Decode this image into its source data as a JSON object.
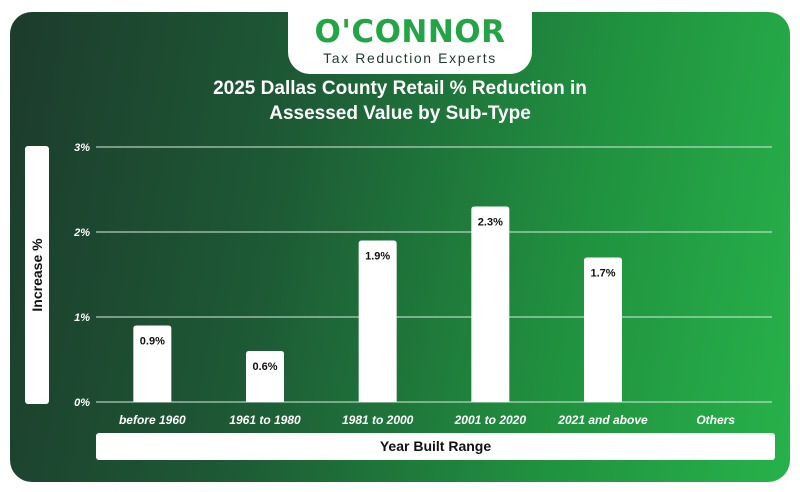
{
  "brand": {
    "wordmark": "O'CONNOR",
    "tagline": "Tax Reduction Experts"
  },
  "chart_data": {
    "type": "bar",
    "title": "2025 Dallas County Retail % Reduction in Assessed Value by Sub-Type",
    "title_lines": [
      "2025 Dallas County Retail % Reduction in",
      "Assessed Value by Sub-Type"
    ],
    "xlabel": "Year Built Range",
    "ylabel": "Increase %",
    "categories": [
      "before 1960",
      "1961 to 1980",
      "1981 to 2000",
      "2001 to 2020",
      "2021 and above",
      "Others"
    ],
    "values": [
      0.9,
      0.6,
      1.9,
      2.3,
      1.7,
      null
    ],
    "data_labels": [
      "0.9%",
      "0.6%",
      "1.9%",
      "2.3%",
      "1.7%",
      ""
    ],
    "yticks": [
      "0%",
      "1%",
      "2%",
      "3%"
    ],
    "ylim": [
      0,
      3
    ],
    "grid": true,
    "colors": {
      "bar": "#ffffff",
      "grid": "#d9eadd",
      "axis_text": "#ffffff",
      "label_text": "#111111"
    }
  }
}
